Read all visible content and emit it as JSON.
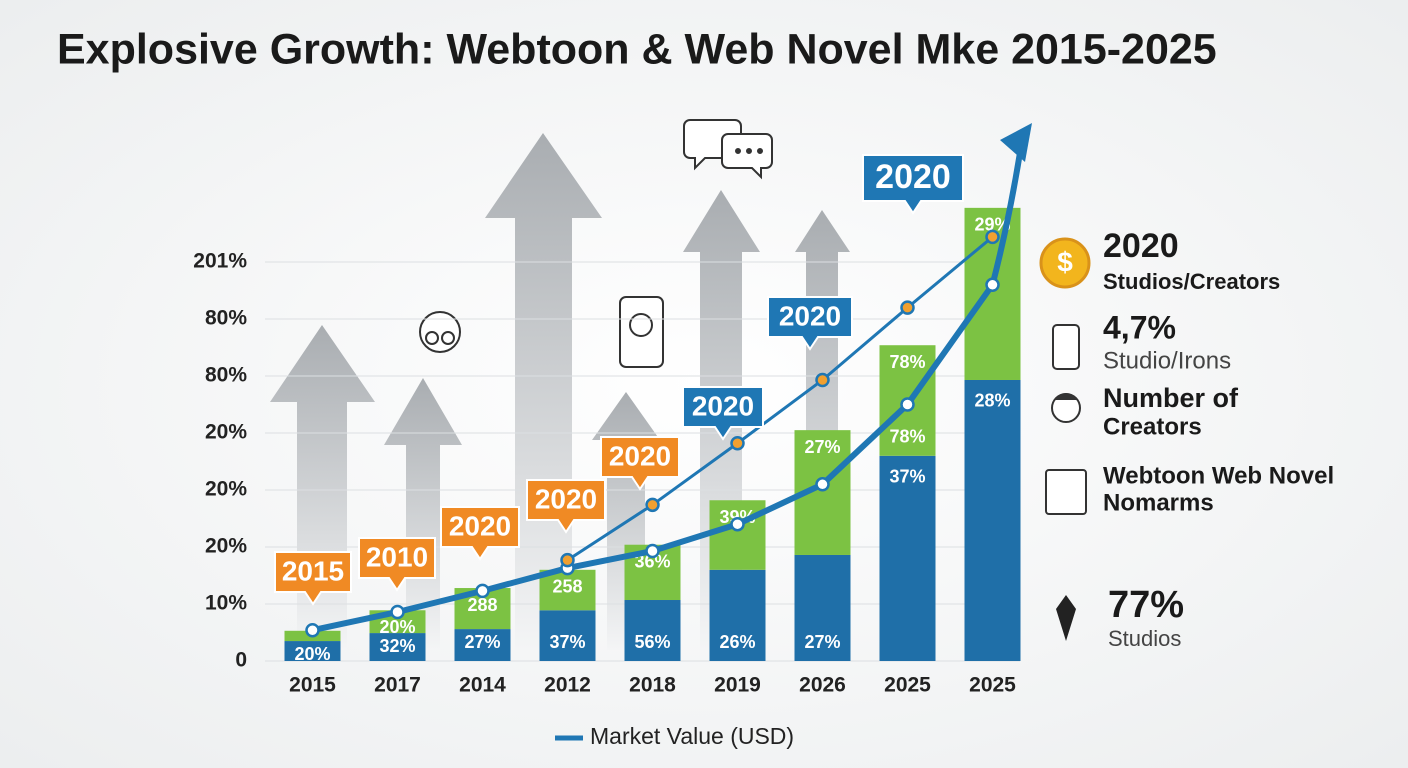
{
  "chart_data": {
    "type": "bar",
    "title": "Explosive Growth: Webtoon & Web Novel Mke 2015-2025",
    "categories": [
      "2015",
      "2017",
      "2014",
      "2012",
      "2018",
      "2019",
      "2026",
      "2025",
      "2025"
    ],
    "ylim": [
      0,
      80
    ],
    "yticks": [
      0,
      {
        "value": 10,
        "label": "10%"
      },
      {
        "value": 20,
        "label": "20%"
      },
      {
        "value": 30,
        "label": "20%"
      },
      {
        "value": 40,
        "label": "20%"
      },
      {
        "value": 50,
        "label": "80%"
      },
      {
        "value": 60,
        "label": "80%"
      },
      {
        "value": 70,
        "label": "201%"
      }
    ],
    "grid": true,
    "series": [
      {
        "color": "#1f6fa8",
        "values": [
          3.5,
          4.9,
          5.6,
          8.9,
          10.7,
          16,
          18.6,
          36,
          49.3
        ],
        "segment_texts": [
          "20%",
          "32%",
          "27%",
          "37%",
          "56%",
          "26%",
          "27%",
          "37%",
          "28%"
        ]
      },
      {
        "color": "#7cc243",
        "values": [
          1.8,
          4,
          7.2,
          7.1,
          9.7,
          12.2,
          21.9,
          19.4,
          30.2
        ],
        "segment_texts": [
          "",
          "20%",
          "288",
          "258",
          "36%",
          "39%",
          "27%",
          "78%",
          "29%"
        ]
      }
    ],
    "extra_texts": [
      "78%"
    ],
    "lines": [
      {
        "name": "Market Value (USD)",
        "color": "#1f77b4",
        "values": [
          5.4,
          8.6,
          12.3,
          16.3,
          19.3,
          24,
          31,
          45,
          66
        ]
      },
      {
        "color": "#1f77b4",
        "marker_color": "#f0a030",
        "values": [
          null,
          null,
          null,
          17.7,
          27.4,
          38.2,
          49.3,
          62,
          74.4
        ]
      }
    ],
    "callouts": [
      {
        "text": "2015",
        "color": "#f08a24"
      },
      {
        "text": "2010",
        "color": "#f08a24"
      },
      {
        "text": "2020",
        "color": "#f08a24"
      },
      {
        "text": "2020",
        "color": "#f08a24"
      },
      {
        "text": "2020",
        "color": "#f08a24"
      },
      {
        "text": "2020",
        "color": "#1f77b4"
      },
      {
        "text": "2020",
        "color": "#1f77b4"
      },
      {
        "text": "2020",
        "color": "#1f77b4"
      }
    ],
    "side_stats": [
      {
        "lines": [
          "2020",
          "Studios/Creators"
        ]
      },
      {
        "lines": [
          "4,7%",
          "Studio/Irons"
        ]
      },
      {
        "lines": [
          "Number of",
          "Creators"
        ]
      },
      {
        "lines": [
          "Webtoon Web Novel",
          "Nomarms"
        ]
      },
      {
        "lines": [
          "77%",
          "Studios"
        ]
      }
    ]
  }
}
